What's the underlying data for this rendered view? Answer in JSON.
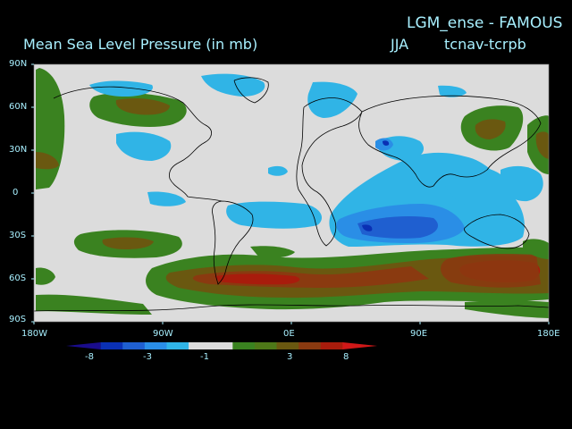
{
  "header": {
    "experiment": "LGM_ense - FAMOUS",
    "season": "JJA",
    "fields": "tcnav-tcrpb",
    "title": "Mean Sea Level Pressure (in mb)"
  },
  "axes": {
    "lat_labels": [
      "90N",
      "60N",
      "30N",
      "0",
      "30S",
      "60S",
      "90S"
    ],
    "lon_labels": [
      "180W",
      "90W",
      "0E",
      "90E",
      "180E"
    ]
  },
  "colorbar": {
    "tick_labels": [
      "-8",
      "-3",
      "-1",
      "3",
      "8"
    ],
    "colors": [
      "#1a0c8c",
      "#0a30b4",
      "#1f5fd0",
      "#2a8ee6",
      "#30b4e6",
      "#dcdcdc",
      "#dcdcdc",
      "#3a8220",
      "#4e7818",
      "#6a5810",
      "#8a3a10",
      "#a81c0c",
      "#d01818"
    ]
  },
  "colors": {
    "land_background": "#dcdcdc",
    "text": "#a8f0ff"
  }
}
